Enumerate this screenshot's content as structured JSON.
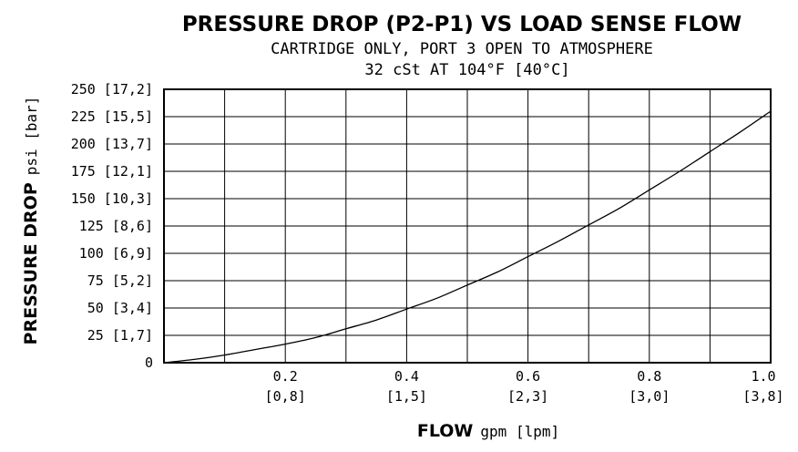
{
  "chart_data": {
    "type": "line",
    "title": "PRESSURE DROP (P2-P1) VS LOAD SENSE FLOW",
    "subtitle": "CARTRIDGE ONLY, PORT 3 OPEN TO ATMOSPHERE",
    "subtitle2": "32 cSt AT 104°F [40°C]",
    "xlabel_bold": "FLOW",
    "xlabel_rest": "gpm [lpm]",
    "ylabel_bold": "PRESSURE DROP",
    "ylabel_rest": "psi [bar]",
    "xlim": [
      0,
      1.0
    ],
    "ylim": [
      0,
      250
    ],
    "x_ticks": [
      {
        "value": 0.2,
        "label": "0.2",
        "sub": "[0,8]"
      },
      {
        "value": 0.4,
        "label": "0.4",
        "sub": "[1,5]"
      },
      {
        "value": 0.6,
        "label": "0.6",
        "sub": "[2,3]"
      },
      {
        "value": 0.8,
        "label": "0.8",
        "sub": "[3,0]"
      },
      {
        "value": 1.0,
        "label": "1.0",
        "sub": "[3,8]"
      }
    ],
    "y_ticks": [
      {
        "value": 0,
        "label": "0"
      },
      {
        "value": 25,
        "label": "25 [1,7]"
      },
      {
        "value": 50,
        "label": "50 [3,4]"
      },
      {
        "value": 75,
        "label": "75 [5,2]"
      },
      {
        "value": 100,
        "label": "100 [6,9]"
      },
      {
        "value": 125,
        "label": "125 [8,6]"
      },
      {
        "value": 150,
        "label": "150 [10,3]"
      },
      {
        "value": 175,
        "label": "175 [12,1]"
      },
      {
        "value": 200,
        "label": "200 [13,7]"
      },
      {
        "value": 225,
        "label": "225 [15,5]"
      },
      {
        "value": 250,
        "label": "250 [17,2]"
      }
    ],
    "x_grid": [
      0.1,
      0.2,
      0.3,
      0.4,
      0.5,
      0.6,
      0.7,
      0.8,
      0.9
    ],
    "y_grid": [
      25,
      50,
      75,
      100,
      125,
      150,
      175,
      200,
      225
    ],
    "grid": true,
    "series": [
      {
        "x": [
          0,
          0.05,
          0.1,
          0.15,
          0.2,
          0.25,
          0.3,
          0.35,
          0.4,
          0.45,
          0.5,
          0.55,
          0.6,
          0.65,
          0.7,
          0.75,
          0.8,
          0.85,
          0.9,
          0.95,
          1.0
        ],
        "y": [
          0,
          3,
          7,
          12,
          17,
          23,
          31,
          39,
          49,
          59,
          71,
          83,
          97,
          111,
          126,
          141,
          158,
          175,
          193,
          211,
          230
        ]
      }
    ]
  }
}
